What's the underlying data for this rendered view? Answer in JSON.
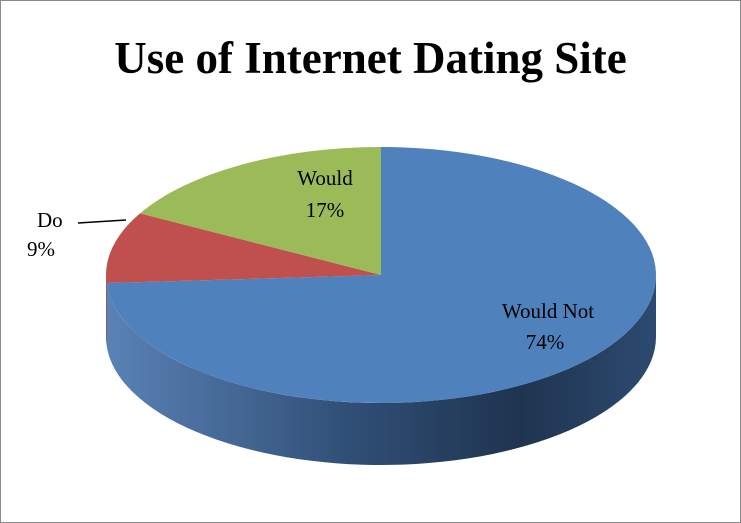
{
  "chart_data": {
    "type": "pie",
    "title": "Use of Internet Dating Site",
    "slices": [
      {
        "label": "Would Not",
        "value": 74,
        "value_text": "74%",
        "color": "#4f81bd",
        "side_color": "#3b618e"
      },
      {
        "label": "Do",
        "value": 9,
        "value_text": "9%",
        "color": "#c0504d",
        "side_color": "#903c3a"
      },
      {
        "label": "Would",
        "value": 17,
        "value_text": "17%",
        "color": "#9bbb59",
        "side_color": "#748c43"
      }
    ],
    "style": "3d"
  }
}
